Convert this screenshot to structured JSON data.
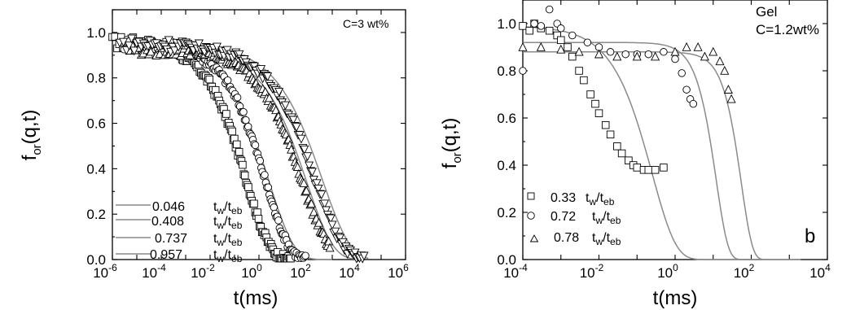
{
  "chart_data": [
    {
      "type": "scatter",
      "panel": "a",
      "annotation": "C=3 wt%",
      "xlabel": "t(ms)",
      "ylabel_main": "f",
      "ylabel_sub": "or",
      "ylabel_tail": "(q,t)",
      "xscale": "log",
      "xlim": [
        1e-06,
        1000000.0
      ],
      "ylim": [
        0.0,
        1.1
      ],
      "xticks": [
        {
          "mant": "10",
          "exp": "-6"
        },
        {
          "mant": "10",
          "exp": "-4"
        },
        {
          "mant": "10",
          "exp": "-2"
        },
        {
          "mant": "10",
          "exp": "0"
        },
        {
          "mant": "10",
          "exp": "2"
        },
        {
          "mant": "10",
          "exp": "4"
        },
        {
          "mant": "10",
          "exp": "6"
        }
      ],
      "yticks": [
        "0.0",
        "0.2",
        "0.4",
        "0.6",
        "0.8",
        "1.0"
      ],
      "legend": {
        "placement": "lower-left",
        "entries": [
          {
            "value": "0.046",
            "label_main": "t",
            "label_sub1": "w",
            "label_mid": "/t",
            "label_sub2": "eb"
          },
          {
            "value": "0.408",
            "label_main": "t",
            "label_sub1": "w",
            "label_mid": "/t",
            "label_sub2": "eb"
          },
          {
            "value": "0.737",
            "label_main": "t",
            "label_sub1": "w",
            "label_mid": "/t",
            "label_sub2": "eb"
          },
          {
            "value": "0.957",
            "label_main": "t",
            "label_sub1": "w",
            "label_mid": "/t",
            "label_sub2": "eb"
          }
        ]
      },
      "series": [
        {
          "marker": "square",
          "plateau": 0.96,
          "tau": 0.3,
          "beta": 0.45,
          "nonerg": 0.0,
          "tmin": 1e-06,
          "tmax": 20,
          "n": 140,
          "fit": {
            "plateau": 0.96,
            "tau": 0.35,
            "beta": 0.42,
            "tmax": 100,
            "tmin": 1e-05
          }
        },
        {
          "marker": "circle",
          "plateau": 0.95,
          "tau": 1.8,
          "beta": 0.45,
          "nonerg": 0.0,
          "tmin": 3e-06,
          "tmax": 80,
          "n": 140,
          "fit": {
            "plateau": 0.95,
            "tau": 2.5,
            "beta": 0.42,
            "tmax": 1000,
            "tmin": 1e-05
          }
        },
        {
          "marker": "triangle",
          "plateau": 0.93,
          "tau": 60,
          "beta": 0.4,
          "nonerg": 0.0,
          "tmin": 5e-06,
          "tmax": 800,
          "n": 140,
          "fit": {
            "plateau": 0.93,
            "tau": 90,
            "beta": 0.4,
            "tmax": 20000,
            "tmin": 1e-05
          }
        },
        {
          "marker": "triangle-down",
          "plateau": 0.95,
          "tau": 200,
          "beta": 0.38,
          "nonerg": 0.0,
          "tmin": 2e-06,
          "tmax": 20000,
          "n": 140,
          "fit": {
            "plateau": 0.95,
            "tau": 400,
            "beta": 0.38,
            "tmax": 30000,
            "tmin": 1e-05
          }
        }
      ]
    },
    {
      "type": "scatter",
      "panel": "b",
      "annotation_line1": "Gel",
      "annotation_line2": "C=1.2wt%",
      "panel_letter": "b",
      "xlabel": "t(ms)",
      "ylabel_main": "f",
      "ylabel_sub": "or",
      "ylabel_tail": "(q,t)",
      "xscale": "log",
      "xlim": [
        0.0001,
        10000.0
      ],
      "ylim": [
        0.0,
        1.1
      ],
      "xticks": [
        {
          "mant": "10",
          "exp": "-4"
        },
        {
          "mant": "10",
          "exp": "-2"
        },
        {
          "mant": "10",
          "exp": "0"
        },
        {
          "mant": "10",
          "exp": "2"
        },
        {
          "mant": "10",
          "exp": "4"
        }
      ],
      "yticks": [
        "0.0",
        "0.2",
        "0.4",
        "0.6",
        "0.8",
        "1.0"
      ],
      "legend": {
        "placement": "lower-left",
        "entries": [
          {
            "value": "0.33",
            "label_main": "t",
            "label_sub1": "w",
            "label_mid": "/t",
            "label_sub2": "eb",
            "marker": "square"
          },
          {
            "value": "0.72",
            "label_main": "t",
            "label_sub1": "w",
            "label_mid": "/t",
            "label_sub2": "eb",
            "marker": "circle"
          },
          {
            "value": "0.78",
            "label_main": "t",
            "label_sub1": "w",
            "label_mid": "/t",
            "label_sub2": "eb",
            "marker": "triangle"
          }
        ]
      },
      "series": [
        {
          "marker": "square",
          "points": [
            [
              0.0001,
              0.99
            ],
            [
              0.00015,
              0.97
            ],
            [
              0.0002,
              1.0
            ],
            [
              0.0003,
              0.98
            ],
            [
              0.0005,
              0.97
            ],
            [
              0.0008,
              0.95
            ],
            [
              0.001,
              0.93
            ],
            [
              0.0015,
              0.9
            ],
            [
              0.002,
              0.86
            ],
            [
              0.003,
              0.8
            ],
            [
              0.004,
              0.76
            ],
            [
              0.006,
              0.7
            ],
            [
              0.008,
              0.66
            ],
            [
              0.01,
              0.62
            ],
            [
              0.015,
              0.57
            ],
            [
              0.02,
              0.53
            ],
            [
              0.03,
              0.48
            ],
            [
              0.04,
              0.45
            ],
            [
              0.06,
              0.42
            ],
            [
              0.08,
              0.4
            ],
            [
              0.1,
              0.39
            ],
            [
              0.15,
              0.38
            ],
            [
              0.2,
              0.38
            ],
            [
              0.3,
              0.38
            ],
            [
              0.5,
              0.39
            ]
          ],
          "fit": {
            "plateau": 0.99,
            "tau": 0.25,
            "beta": 0.7,
            "nonerg": 0.0,
            "tmin": 0.0001,
            "tmax": 200
          }
        },
        {
          "marker": "circle",
          "points": [
            [
              0.0001,
              0.8
            ],
            [
              0.0002,
              1.0
            ],
            [
              0.0003,
              0.99
            ],
            [
              0.0005,
              1.06
            ],
            [
              0.0008,
              1.0
            ],
            [
              0.001,
              0.98
            ],
            [
              0.002,
              0.95
            ],
            [
              0.005,
              0.92
            ],
            [
              0.01,
              0.9
            ],
            [
              0.02,
              0.88
            ],
            [
              0.05,
              0.87
            ],
            [
              0.1,
              0.87
            ],
            [
              0.2,
              0.87
            ],
            [
              0.5,
              0.88
            ],
            [
              1,
              0.85
            ],
            [
              1.5,
              0.79
            ],
            [
              2,
              0.72
            ],
            [
              2.5,
              0.68
            ],
            [
              3,
              0.66
            ]
          ],
          "fit": {
            "plateau": 0.92,
            "tau": 12,
            "beta": 1.4,
            "nonerg": 0.0,
            "tmin": 0.0001,
            "tmax": 200
          }
        },
        {
          "marker": "triangle",
          "points": [
            [
              0.0001,
              0.9
            ],
            [
              0.0003,
              0.9
            ],
            [
              0.001,
              0.89
            ],
            [
              0.003,
              0.88
            ],
            [
              0.01,
              0.87
            ],
            [
              0.03,
              0.86
            ],
            [
              0.1,
              0.86
            ],
            [
              0.3,
              0.86
            ],
            [
              1,
              0.88
            ],
            [
              2,
              0.9
            ],
            [
              4,
              0.9
            ],
            [
              6,
              0.86
            ],
            [
              10,
              0.88
            ],
            [
              15,
              0.84
            ],
            [
              20,
              0.8
            ],
            [
              25,
              0.72
            ],
            [
              30,
              0.68
            ]
          ],
          "fit": {
            "plateau": 0.88,
            "tau": 55,
            "beta": 1.5,
            "nonerg": 0.0,
            "tmin": 0.0001,
            "tmax": 2000
          }
        }
      ]
    }
  ]
}
